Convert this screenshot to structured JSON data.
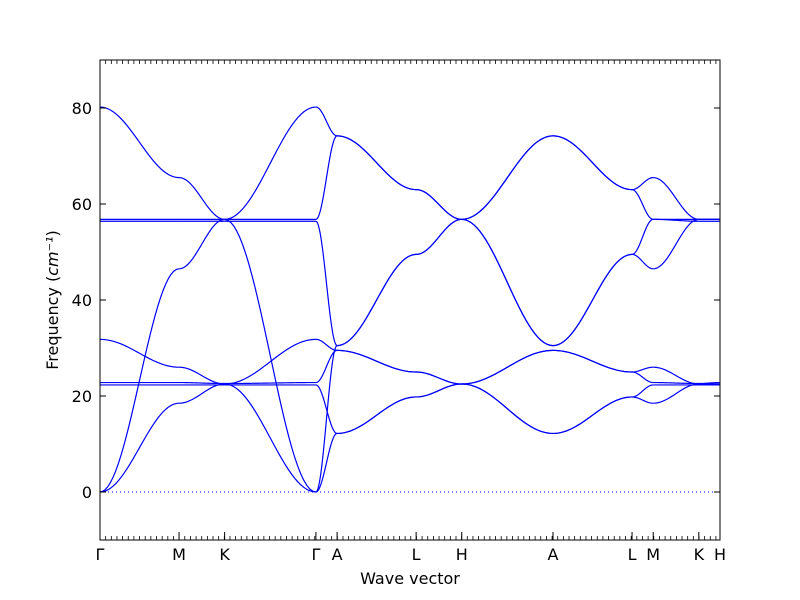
{
  "chart_data": {
    "type": "line",
    "xlabel": "Wave vector",
    "ylabel": "Frequency",
    "ylabel_unit": "cm⁻¹",
    "ylim": [
      -10,
      90
    ],
    "yticks": [
      0,
      20,
      40,
      60,
      80
    ],
    "grid": false,
    "zero_line": 0,
    "line_color": "#0000ff",
    "xticks": [
      {
        "label": "Γ",
        "pos": 0.0
      },
      {
        "label": "M",
        "pos": 1.0
      },
      {
        "label": "K",
        "pos": 1.577
      },
      {
        "label": "Γ",
        "pos": 2.732
      },
      {
        "label": "A",
        "pos": 3.0
      },
      {
        "label": "L",
        "pos": 4.0
      },
      {
        "label": "H",
        "pos": 4.577
      },
      {
        "label": "A",
        "pos": 5.732
      },
      {
        "label": "L",
        "pos": 6.732
      },
      {
        "label": "M",
        "pos": 7.0
      },
      {
        "label": "K",
        "pos": 7.577
      },
      {
        "label": "H",
        "pos": 7.845
      }
    ],
    "segments": [
      {
        "from": "Γ",
        "to": "M",
        "bands": [
          [
            0,
            46.5
          ],
          [
            0,
            18.5
          ],
          [
            80.2,
            65.5
          ],
          [
            31.8,
            26.0
          ],
          [
            22.8,
            22.8
          ],
          [
            22.3,
            22.3
          ],
          [
            56.8,
            56.8
          ],
          [
            56.4,
            56.4
          ]
        ]
      },
      {
        "from": "M",
        "to": "K",
        "bands": [
          [
            46.5,
            56.8
          ],
          [
            18.5,
            22.5
          ],
          [
            65.5,
            56.8
          ],
          [
            26.0,
            22.5
          ],
          [
            22.8,
            22.6
          ],
          [
            22.3,
            22.3
          ],
          [
            56.8,
            56.8
          ],
          [
            56.4,
            56.4
          ]
        ]
      },
      {
        "from": "K",
        "to": "Γ",
        "bands": [
          [
            56.8,
            0
          ],
          [
            22.5,
            0
          ],
          [
            56.8,
            80.2
          ],
          [
            22.5,
            31.8
          ],
          [
            22.6,
            22.8
          ],
          [
            22.3,
            22.3
          ],
          [
            56.8,
            56.8
          ],
          [
            56.4,
            56.4
          ]
        ]
      },
      {
        "from": "Γ",
        "to": "A",
        "bands": [
          [
            0,
            30.5
          ],
          [
            0,
            12.2
          ],
          [
            80.2,
            74.2
          ],
          [
            31.8,
            29.5
          ],
          [
            22.8,
            29.5
          ],
          [
            22.3,
            12.2
          ],
          [
            56.8,
            74.2
          ],
          [
            56.4,
            30.5
          ]
        ]
      },
      {
        "from": "A",
        "to": "L",
        "bands": [
          [
            30.5,
            49.5
          ],
          [
            12.2,
            19.8
          ],
          [
            74.2,
            63.0
          ],
          [
            29.5,
            25.0
          ],
          [
            29.5,
            25.0
          ],
          [
            12.2,
            19.8
          ],
          [
            74.2,
            63.0
          ],
          [
            30.5,
            49.5
          ]
        ]
      },
      {
        "from": "L",
        "to": "H",
        "bands": [
          [
            49.5,
            56.8
          ],
          [
            19.8,
            22.5
          ],
          [
            63.0,
            56.8
          ],
          [
            25.0,
            22.5
          ],
          [
            25.0,
            22.5
          ],
          [
            19.8,
            22.5
          ],
          [
            63.0,
            56.8
          ],
          [
            49.5,
            56.8
          ]
        ]
      },
      {
        "from": "H",
        "to": "A",
        "bands": [
          [
            56.8,
            74.2
          ],
          [
            22.5,
            29.5
          ],
          [
            56.8,
            30.5
          ],
          [
            22.5,
            12.2
          ],
          [
            22.5,
            29.5
          ],
          [
            22.5,
            12.2
          ],
          [
            56.8,
            30.5
          ],
          [
            56.8,
            74.2
          ]
        ]
      },
      {
        "from": "A",
        "to": "L",
        "bands": [
          [
            74.2,
            63.0
          ],
          [
            29.5,
            25.0
          ],
          [
            30.5,
            49.5
          ],
          [
            12.2,
            19.8
          ],
          [
            29.5,
            25.0
          ],
          [
            12.2,
            19.8
          ],
          [
            30.5,
            49.5
          ],
          [
            74.2,
            63.0
          ]
        ]
      },
      {
        "from": "L",
        "to": "M",
        "bands": [
          [
            63.0,
            65.5
          ],
          [
            25.0,
            26.0
          ],
          [
            49.5,
            46.5
          ],
          [
            19.8,
            18.5
          ],
          [
            25.0,
            22.8
          ],
          [
            19.8,
            22.3
          ],
          [
            49.5,
            56.8
          ],
          [
            63.0,
            56.8
          ]
        ]
      },
      {
        "from": "M",
        "to": "K",
        "bands": [
          [
            65.5,
            56.8
          ],
          [
            26.0,
            22.5
          ],
          [
            46.5,
            56.8
          ],
          [
            18.5,
            22.5
          ],
          [
            22.8,
            22.6
          ],
          [
            22.3,
            22.3
          ],
          [
            56.8,
            56.8
          ],
          [
            56.8,
            56.4
          ]
        ]
      },
      {
        "from": "K",
        "to": "H",
        "bands": [
          [
            56.8,
            56.8
          ],
          [
            22.5,
            22.5
          ],
          [
            56.8,
            56.8
          ],
          [
            22.5,
            22.5
          ],
          [
            22.6,
            22.8
          ],
          [
            22.3,
            22.3
          ],
          [
            56.8,
            56.8
          ],
          [
            56.4,
            56.4
          ]
        ]
      }
    ]
  }
}
